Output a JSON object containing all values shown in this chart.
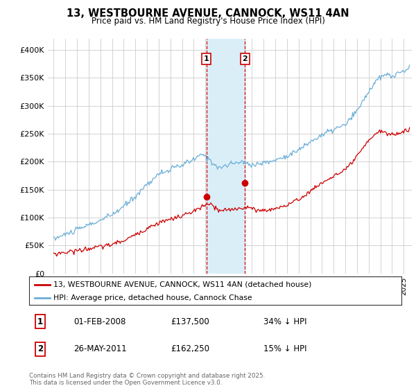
{
  "title": "13, WESTBOURNE AVENUE, CANNOCK, WS11 4AN",
  "subtitle": "Price paid vs. HM Land Registry's House Price Index (HPI)",
  "legend_line1": "13, WESTBOURNE AVENUE, CANNOCK, WS11 4AN (detached house)",
  "legend_line2": "HPI: Average price, detached house, Cannock Chase",
  "sale1_date": "01-FEB-2008",
  "sale1_price": "£137,500",
  "sale1_hpi": "34% ↓ HPI",
  "sale2_date": "26-MAY-2011",
  "sale2_price": "£162,250",
  "sale2_hpi": "15% ↓ HPI",
  "sale1_x": 2008.08,
  "sale2_x": 2011.4,
  "sale1_price_val": 137500,
  "sale2_price_val": 162250,
  "footer": "Contains HM Land Registry data © Crown copyright and database right 2025.\nThis data is licensed under the Open Government Licence v3.0.",
  "hpi_color": "#6aaed6",
  "price_color": "#cc0000",
  "highlight_color": "#daeef8",
  "highlight_border": "#cc0000",
  "ylim": [
    0,
    420000
  ],
  "xlim_start": 1994.5,
  "xlim_end": 2025.7
}
